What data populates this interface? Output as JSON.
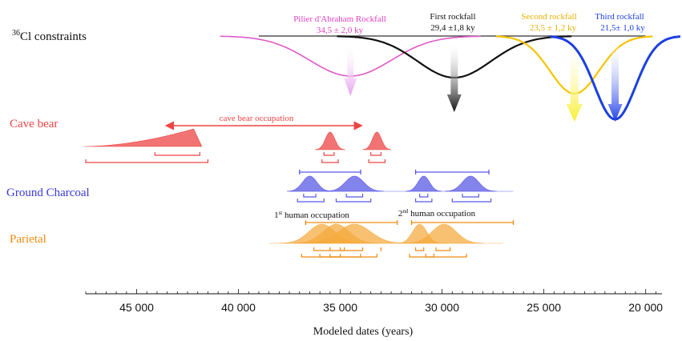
{
  "chart_data": {
    "type": "area",
    "xlabel": "Modeled dates (years)",
    "x_axis": {
      "min": 47500,
      "max": 19200,
      "reversed": true,
      "major_ticks": [
        45000,
        40000,
        35000,
        30000,
        25000,
        20000
      ],
      "tick_labels": [
        "45 000",
        "40 000",
        "35 000",
        "30 000",
        "25 000",
        "20 000"
      ],
      "minor_step": 500
    },
    "cl36": {
      "label_sup": "36",
      "label": "Cl constraints",
      "baseline_from": 39000,
      "baseline_to": 20000,
      "events": [
        {
          "name": "Pilier d'Abraham Rockfall",
          "value": "34,5 ± 2,0 ky",
          "mean": 34500,
          "sd": 2000,
          "color": "#e05ac8",
          "arrow_color": "#e8a0f0"
        },
        {
          "name": "First rockfall",
          "value": "29,4 ±1,8 ky",
          "mean": 29400,
          "sd": 1800,
          "color": "#111111",
          "arrow_color": "#222222"
        },
        {
          "name": "Second rockfall",
          "value": "23,5 ± 1,2 ky",
          "mean": 23500,
          "sd": 1200,
          "color": "#f5c400",
          "arrow_color": "#f7e94a"
        },
        {
          "name": "Third rockfall",
          "value": "21,5± 1,0 ky",
          "mean": 21500,
          "sd": 1000,
          "color": "#1c3fe0",
          "arrow_color": "#2546e8"
        }
      ]
    },
    "groups": [
      {
        "name": "Cave bear",
        "color": "#ee4444",
        "annotation": "cave bear occupation",
        "annotation_range": [
          43500,
          34000
        ],
        "distributions": [
          {
            "shape": "tail",
            "from": 47600,
            "to": 41800,
            "peak": 42200
          },
          {
            "shape": "peak",
            "center": 35500,
            "sd": 230
          },
          {
            "shape": "peak",
            "center": 33200,
            "sd": 220
          }
        ],
        "ranges_68": [
          [
            44100,
            41900
          ],
          [
            35800,
            35300
          ],
          [
            33500,
            33000
          ]
        ],
        "ranges_95": [
          [
            47500,
            41500
          ],
          [
            35900,
            35100
          ],
          [
            33600,
            32800
          ]
        ]
      },
      {
        "name": "Ground Charcoal",
        "color": "#5a5ae6",
        "occupations": [
          [
            37000,
            34000
          ],
          [
            31300,
            27700
          ]
        ],
        "distributions": [
          {
            "center": 36500,
            "sd": 350
          },
          {
            "center": 34300,
            "sd": 450
          },
          {
            "center": 30900,
            "sd": 280
          },
          {
            "center": 28600,
            "sd": 400
          }
        ],
        "ranges_68": [
          [
            36800,
            36200
          ],
          [
            34700,
            33900
          ],
          [
            31100,
            30700
          ],
          [
            29000,
            28200
          ]
        ],
        "ranges_95": [
          [
            37100,
            35800
          ],
          [
            35200,
            33500
          ],
          [
            31300,
            30500
          ],
          [
            29500,
            27600
          ]
        ]
      },
      {
        "name": "Parietal",
        "color": "#f5a93c",
        "occupations": [
          [
            36700,
            32200
          ],
          [
            31500,
            26500
          ]
        ],
        "occupation_labels": [
          {
            "num": "1",
            "sup": "st",
            "text": " human occupation"
          },
          {
            "num": "2",
            "sup": "nd",
            "text": " human occupation"
          }
        ],
        "distributions": [
          {
            "center": 35900,
            "sd": 650
          },
          {
            "center": 35200,
            "sd": 650
          },
          {
            "center": 34300,
            "sd": 800
          },
          {
            "center": 31100,
            "sd": 350
          },
          {
            "center": 29900,
            "sd": 600
          }
        ],
        "ranges_68": [
          [
            36300,
            35500
          ],
          [
            35500,
            34800
          ],
          [
            35000,
            33900
          ],
          [
            31300,
            30900
          ],
          [
            30300,
            29600
          ]
        ],
        "ranges_95": [
          [
            36900,
            35000
          ],
          [
            36000,
            34000
          ],
          [
            35500,
            33200
          ],
          [
            31600,
            30400
          ],
          [
            30800,
            28800
          ]
        ],
        "single_mark": 33000
      }
    ]
  }
}
